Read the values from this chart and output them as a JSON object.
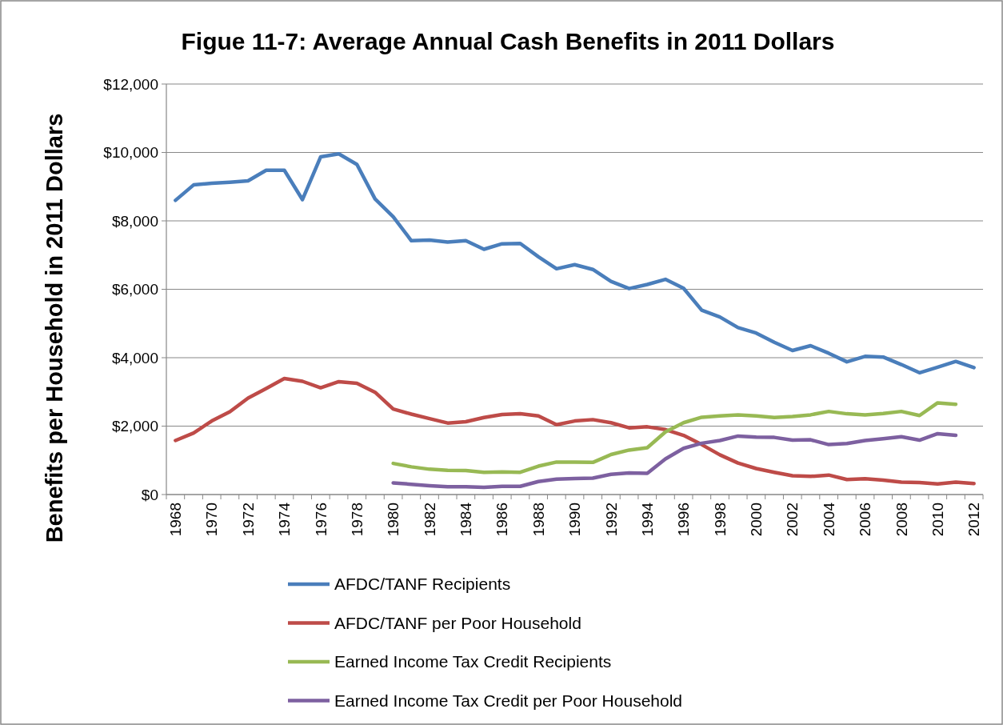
{
  "chart_data": {
    "type": "line",
    "title": "Figue 11-7: Average Annual Cash Benefits in 2011 Dollars",
    "ylabel": "Benefits per Household in 2011 Dollars",
    "categories": [
      "1968",
      null,
      "1970",
      null,
      "1972",
      null,
      "1974",
      null,
      "1976",
      null,
      "1978",
      null,
      "1980",
      null,
      "1982",
      null,
      "1984",
      null,
      "1986",
      null,
      "1988",
      null,
      "1990",
      null,
      "1992",
      null,
      "1994",
      null,
      "1996",
      null,
      "1998",
      null,
      "2000",
      null,
      "2002",
      null,
      "2004",
      null,
      "2006",
      null,
      "2008",
      null,
      "2010",
      null,
      "2012"
    ],
    "ylim": [
      0,
      12000
    ],
    "yticks": [
      {
        "value": 0,
        "label": "$0"
      },
      {
        "value": 2000,
        "label": "$2,000"
      },
      {
        "value": 4000,
        "label": "$4,000"
      },
      {
        "value": 6000,
        "label": "$6,000"
      },
      {
        "value": 8000,
        "label": "$8,000"
      },
      {
        "value": 10000,
        "label": "$10,000"
      },
      {
        "value": 12000,
        "label": "$12,000"
      }
    ],
    "grid": "y",
    "legend": "bottom",
    "marker": "none",
    "line_style": "solid",
    "series": [
      {
        "name": "AFDC/TANF Recipients",
        "color": "#4a7ebb",
        "values": [
          8600,
          9050,
          9100,
          9130,
          9170,
          9480,
          9480,
          8620,
          9870,
          9960,
          9650,
          8640,
          8120,
          7420,
          7440,
          7380,
          7420,
          7170,
          7330,
          7340,
          6950,
          6600,
          6720,
          6580,
          6230,
          6020,
          6140,
          6290,
          6030,
          5390,
          5190,
          4880,
          4720,
          4450,
          4210,
          4350,
          4130,
          3880,
          4040,
          4020,
          3800,
          3560,
          3720,
          3890,
          3710
        ]
      },
      {
        "name": "AFDC/TANF per Poor Household",
        "color": "#be4b48",
        "values": [
          1580,
          1800,
          2150,
          2420,
          2820,
          3100,
          3390,
          3310,
          3120,
          3300,
          3250,
          2990,
          2500,
          2350,
          2220,
          2090,
          2130,
          2250,
          2340,
          2360,
          2300,
          2040,
          2150,
          2190,
          2100,
          1950,
          1980,
          1900,
          1730,
          1460,
          1160,
          920,
          760,
          650,
          550,
          530,
          570,
          440,
          460,
          420,
          360,
          350,
          310,
          360,
          320
        ]
      },
      {
        "name": "Earned Income Tax Credit Recipients",
        "color": "#98b954",
        "values": [
          null,
          null,
          null,
          null,
          null,
          null,
          null,
          null,
          null,
          null,
          null,
          null,
          910,
          810,
          740,
          710,
          700,
          650,
          660,
          650,
          830,
          950,
          950,
          940,
          1170,
          1300,
          1370,
          1830,
          2100,
          2260,
          2300,
          2330,
          2300,
          2250,
          2280,
          2330,
          2430,
          2360,
          2330,
          2370,
          2430,
          2310,
          2680,
          2640,
          null
        ]
      },
      {
        "name": "Earned Income Tax Credit per Poor Household",
        "color": "#7d60a0",
        "values": [
          null,
          null,
          null,
          null,
          null,
          null,
          null,
          null,
          null,
          null,
          null,
          null,
          340,
          300,
          260,
          230,
          230,
          210,
          240,
          240,
          380,
          450,
          470,
          480,
          590,
          630,
          620,
          1040,
          1350,
          1500,
          1580,
          1710,
          1680,
          1670,
          1590,
          1600,
          1460,
          1490,
          1580,
          1630,
          1690,
          1590,
          1780,
          1730,
          null
        ]
      }
    ]
  }
}
